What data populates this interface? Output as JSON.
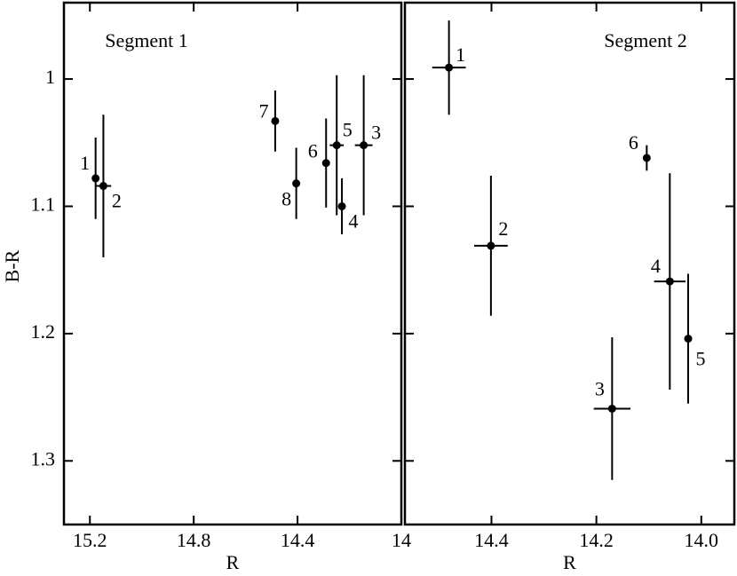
{
  "chart_data": [
    {
      "type": "scatter",
      "title": "Segment 1",
      "xlabel": "R",
      "ylabel": "B-R",
      "x": [
        15.178,
        15.148,
        14.145,
        14.229,
        14.249,
        14.29,
        14.486,
        14.405
      ],
      "values": [
        1.078,
        1.084,
        1.052,
        1.1,
        1.052,
        1.066,
        1.033,
        1.082
      ],
      "x_err": [
        null,
        0.03,
        0.034,
        null,
        0.027,
        null,
        null,
        null
      ],
      "y_err": [
        0.032,
        0.056,
        0.055,
        0.022,
        0.055,
        0.035,
        0.024,
        0.028
      ],
      "point_labels": [
        "1",
        "2",
        "3",
        "4",
        "5",
        "6",
        "7",
        "8"
      ],
      "color": "#000000",
      "xlim": [
        15.3,
        14.0
      ],
      "ylim": [
        0.94,
        1.35
      ],
      "xticks": [
        15.2,
        14.8,
        14.4,
        14
      ],
      "yticks": [
        1,
        1.1,
        1.2,
        1.3
      ]
    },
    {
      "type": "scatter",
      "title": "Segment 2",
      "xlabel": "R",
      "x": [
        14.481,
        14.401,
        14.17,
        14.06,
        14.025,
        14.104
      ],
      "values": [
        0.991,
        1.131,
        1.259,
        1.159,
        1.204,
        1.062
      ],
      "x_err": [
        0.032,
        0.032,
        0.035,
        0.03,
        null,
        null
      ],
      "y_err": [
        0.037,
        0.055,
        0.056,
        0.085,
        0.051,
        0.01
      ],
      "point_labels": [
        "1",
        "2",
        "3",
        "4",
        "5",
        "6"
      ],
      "color": "#000000",
      "xlim": [
        14.565,
        13.937
      ],
      "ylim": [
        0.94,
        1.35
      ],
      "xticks": [
        14.4,
        14.2,
        {
          "value": 14,
          "label": "14.0"
        }
      ],
      "yticks": [
        1,
        1.1,
        1.2,
        1.3
      ]
    }
  ]
}
